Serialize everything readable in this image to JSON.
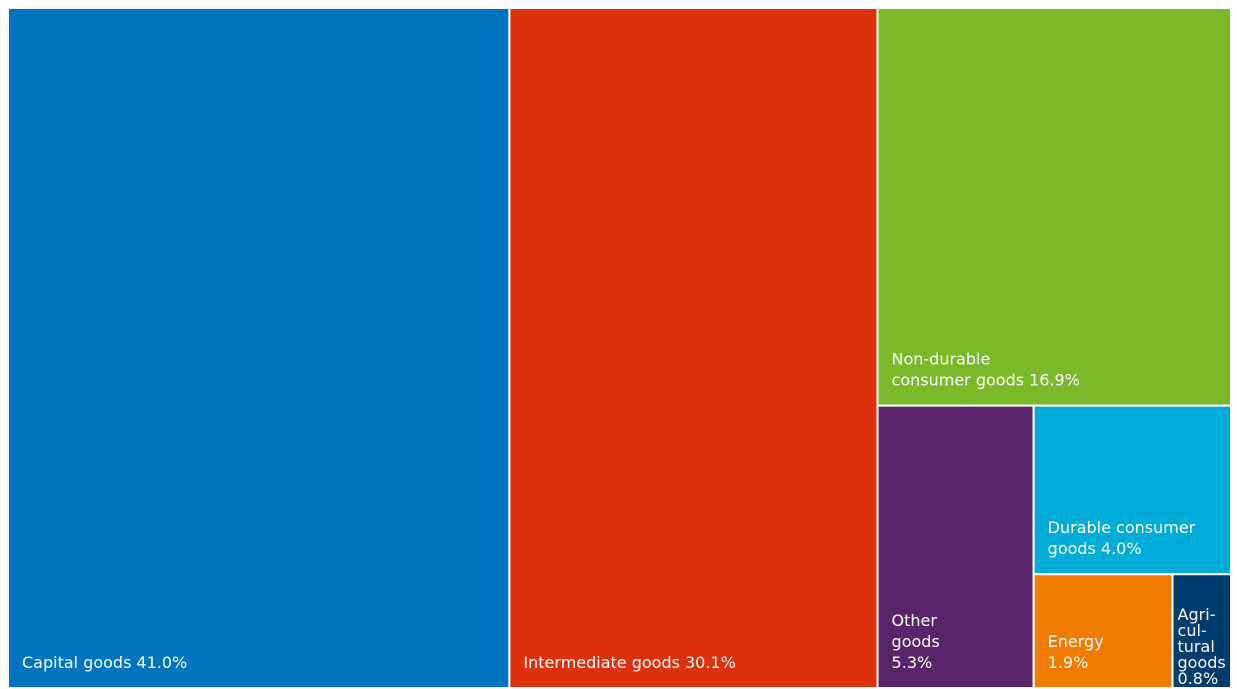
{
  "chart_data": {
    "type": "treemap",
    "categories": [
      "Capital goods",
      "Intermediate goods",
      "Non-durable\nconsumer goods",
      "Other\ngoods",
      "Durable consumer\ngoods",
      "Energy",
      "Agri-\ncul-\ntural\ngoods"
    ],
    "values": [
      41.0,
      30.1,
      16.9,
      5.3,
      4.0,
      1.9,
      0.8
    ],
    "value_labels": [
      "41.0%",
      "30.1%",
      "16.9%",
      "5.3%",
      "4.0%",
      "1.9%",
      "0.8%"
    ],
    "colors": [
      "#0075bf",
      "#dc310c",
      "#7ab929",
      "#5a246b",
      "#00acd8",
      "#ef7b00",
      "#003c6e"
    ]
  }
}
